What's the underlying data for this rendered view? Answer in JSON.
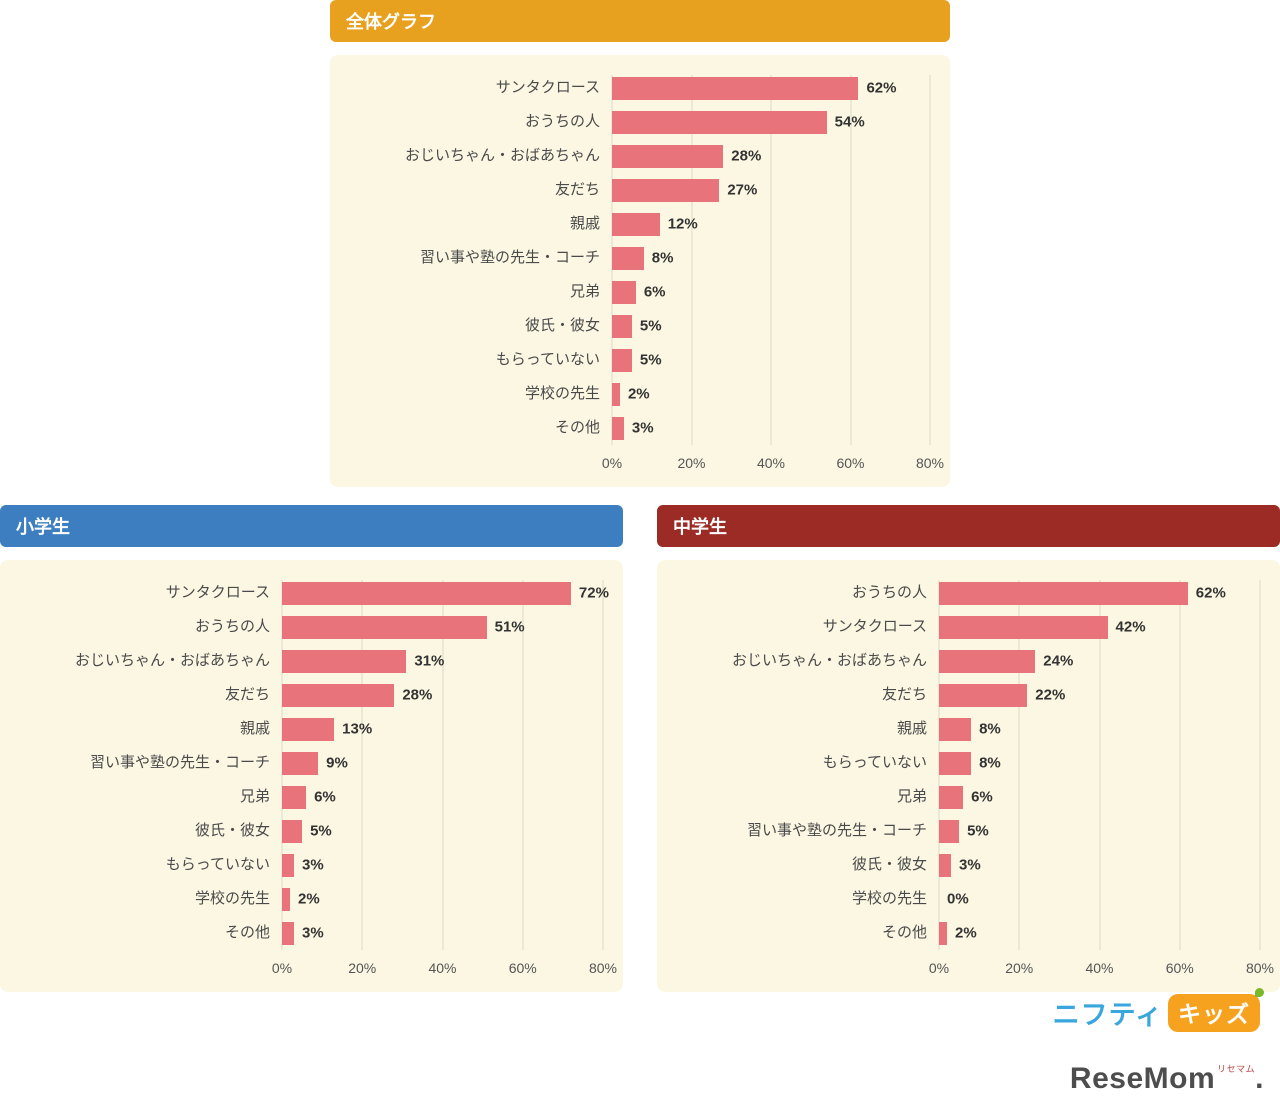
{
  "colors": {
    "panel_background": "#FBF7E2",
    "bar": "#E8737B",
    "overall_header": "#E8A11E",
    "elementary_header": "#3D7EC1",
    "junior_header": "#9C2B26",
    "gridline": "#DBD8C9",
    "value_text": "#333333",
    "category_text": "#4a4a4a"
  },
  "chart_data": [
    {
      "type": "bar",
      "orientation": "horizontal",
      "title": "全体グラフ",
      "header_color": "#E8A11E",
      "bar_color": "#E8737B",
      "categories": [
        "サンタクロース",
        "おうちの人",
        "おじいちゃん・おばあちゃん",
        "友だち",
        "親戚",
        "習い事や塾の先生・コーチ",
        "兄弟",
        "彼氏・彼女",
        "もらっていない",
        "学校の先生",
        "その他"
      ],
      "values": [
        62,
        54,
        28,
        27,
        12,
        8,
        6,
        5,
        5,
        2,
        3
      ],
      "value_labels": [
        "62%",
        "54%",
        "28%",
        "27%",
        "12%",
        "8%",
        "6%",
        "5%",
        "5%",
        "2%",
        "3%"
      ],
      "xlim": [
        0,
        80
      ],
      "xticks": [
        "0%",
        "20%",
        "40%",
        "60%",
        "80%"
      ],
      "grid": true,
      "legend": false
    },
    {
      "type": "bar",
      "orientation": "horizontal",
      "title": "小学生",
      "header_color": "#3D7EC1",
      "bar_color": "#E8737B",
      "categories": [
        "サンタクロース",
        "おうちの人",
        "おじいちゃん・おばあちゃん",
        "友だち",
        "親戚",
        "習い事や塾の先生・コーチ",
        "兄弟",
        "彼氏・彼女",
        "もらっていない",
        "学校の先生",
        "その他"
      ],
      "values": [
        72,
        51,
        31,
        28,
        13,
        9,
        6,
        5,
        3,
        2,
        3
      ],
      "value_labels": [
        "72%",
        "51%",
        "31%",
        "28%",
        "13%",
        "9%",
        "6%",
        "5%",
        "3%",
        "2%",
        "3%"
      ],
      "xlim": [
        0,
        80
      ],
      "xticks": [
        "0%",
        "20%",
        "40%",
        "60%",
        "80%"
      ],
      "grid": true,
      "legend": false
    },
    {
      "type": "bar",
      "orientation": "horizontal",
      "title": "中学生",
      "header_color": "#9C2B26",
      "bar_color": "#E8737B",
      "categories": [
        "おうちの人",
        "サンタクロース",
        "おじいちゃん・おばあちゃん",
        "友だち",
        "親戚",
        "もらっていない",
        "兄弟",
        "習い事や塾の先生・コーチ",
        "彼氏・彼女",
        "学校の先生",
        "その他"
      ],
      "values": [
        62,
        42,
        24,
        22,
        8,
        8,
        6,
        5,
        3,
        0,
        2
      ],
      "value_labels": [
        "62%",
        "42%",
        "24%",
        "22%",
        "8%",
        "8%",
        "6%",
        "5%",
        "3%",
        "0%",
        "2%"
      ],
      "xlim": [
        0,
        80
      ],
      "xticks": [
        "0%",
        "20%",
        "40%",
        "60%",
        "80%"
      ],
      "grid": true,
      "legend": false
    }
  ],
  "logos": {
    "nifty": {
      "text": "ニフティ",
      "badge": "キッズ"
    },
    "resemom": {
      "name": "ReseMom",
      "ruby": "リセマム",
      "dot": "."
    }
  }
}
